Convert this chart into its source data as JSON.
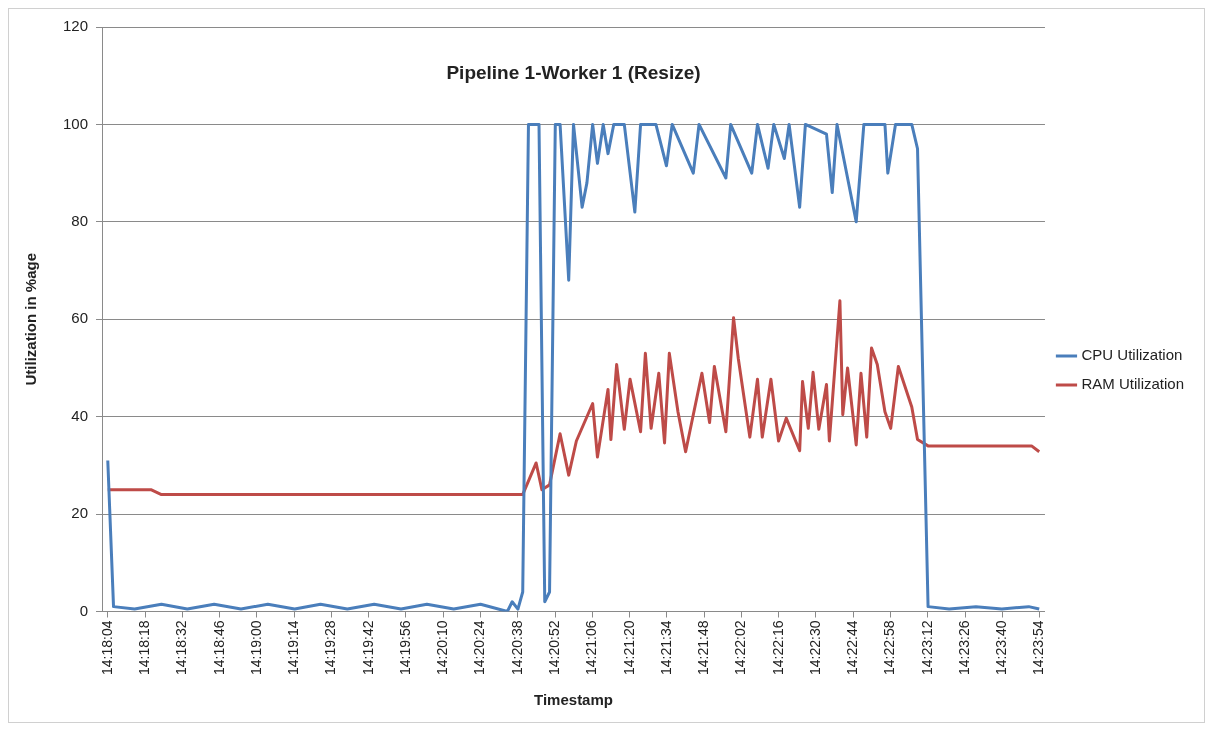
{
  "chart_data": {
    "type": "line",
    "title": "Pipeline 1-Worker 1 (Resize)",
    "xlabel": "Timestamp",
    "ylabel": "Utilization in %age",
    "xlim": [
      14.3005,
      14.3989
    ],
    "ylim": [
      0,
      120
    ],
    "yticks": [
      0,
      20,
      40,
      60,
      80,
      100,
      120
    ],
    "xticks": [
      {
        "value": 14.30111,
        "label": "14:18:04"
      },
      {
        "value": 14.305,
        "label": "14:18:18"
      },
      {
        "value": 14.30889,
        "label": "14:18:32"
      },
      {
        "value": 14.31278,
        "label": "14:18:46"
      },
      {
        "value": 14.31667,
        "label": "14:19:00"
      },
      {
        "value": 14.32056,
        "label": "14:19:14"
      },
      {
        "value": 14.32444,
        "label": "14:19:28"
      },
      {
        "value": 14.32833,
        "label": "14:19:42"
      },
      {
        "value": 14.33222,
        "label": "14:19:56"
      },
      {
        "value": 14.33611,
        "label": "14:20:10"
      },
      {
        "value": 14.34,
        "label": "14:20:24"
      },
      {
        "value": 14.34389,
        "label": "14:20:38"
      },
      {
        "value": 14.34778,
        "label": "14:20:52"
      },
      {
        "value": 14.35167,
        "label": "14:21:06"
      },
      {
        "value": 14.35556,
        "label": "14:21:20"
      },
      {
        "value": 14.35944,
        "label": "14:21:34"
      },
      {
        "value": 14.36333,
        "label": "14:21:48"
      },
      {
        "value": 14.36722,
        "label": "14:22:02"
      },
      {
        "value": 14.37111,
        "label": "14:22:16"
      },
      {
        "value": 14.375,
        "label": "14:22:30"
      },
      {
        "value": 14.37889,
        "label": "14:22:44"
      },
      {
        "value": 14.38278,
        "label": "14:22:58"
      },
      {
        "value": 14.38667,
        "label": "14:23:12"
      },
      {
        "value": 14.39056,
        "label": "14:23:26"
      },
      {
        "value": 14.39444,
        "label": "14:23:40"
      },
      {
        "value": 14.39833,
        "label": "14:23:54"
      }
    ],
    "grid": "y",
    "legend": "right",
    "marker": "none",
    "line_style": "solid",
    "series": [
      {
        "name": "CPU Utilization",
        "color": "#4a7ebb",
        "x": [
          14.3011,
          14.3017,
          14.3039,
          14.3067,
          14.3094,
          14.3122,
          14.315,
          14.3178,
          14.3206,
          14.3233,
          14.3261,
          14.3289,
          14.3317,
          14.3344,
          14.3372,
          14.34,
          14.3428,
          14.3433,
          14.3439,
          14.3444,
          14.345,
          14.3461,
          14.3467,
          14.3472,
          14.3478,
          14.3483,
          14.3492,
          14.3497,
          14.3506,
          14.3511,
          14.3517,
          14.3522,
          14.3528,
          14.3533,
          14.3539,
          14.355,
          14.3561,
          14.3567,
          14.3583,
          14.3594,
          14.36,
          14.3622,
          14.3628,
          14.3656,
          14.3661,
          14.3683,
          14.3689,
          14.37,
          14.3706,
          14.3717,
          14.3722,
          14.3733,
          14.3739,
          14.3761,
          14.3767,
          14.3772,
          14.3792,
          14.38,
          14.3822,
          14.3825,
          14.3833,
          14.385,
          14.3856,
          14.3867,
          14.3889,
          14.3917,
          14.3944,
          14.3972,
          14.3983
        ],
        "values": [
          31,
          1,
          0.5,
          1.5,
          0.5,
          1.5,
          0.5,
          1.5,
          0.5,
          1.5,
          0.5,
          1.5,
          0.5,
          1.5,
          0.5,
          1.5,
          0,
          2,
          0.5,
          4,
          100,
          100,
          2,
          4,
          100,
          100,
          68,
          100,
          83,
          88,
          100,
          92,
          100,
          94,
          100,
          100,
          82,
          100,
          100,
          91.5,
          100,
          90,
          100,
          89,
          100,
          90,
          100,
          91,
          100,
          93,
          100,
          83,
          100,
          98,
          86,
          100,
          80,
          100,
          100,
          90,
          100,
          100,
          95,
          1,
          0.5,
          1,
          0.5,
          1,
          0.5
        ]
      },
      {
        "name": "RAM Utilization",
        "color": "#be4b48",
        "x": [
          14.3011,
          14.3056,
          14.3067,
          14.3444,
          14.3458,
          14.3464,
          14.3472,
          14.3483,
          14.3492,
          14.35,
          14.3517,
          14.3522,
          14.3533,
          14.3536,
          14.3542,
          14.355,
          14.3556,
          14.3567,
          14.3572,
          14.3578,
          14.3586,
          14.3592,
          14.3597,
          14.3606,
          14.3614,
          14.3631,
          14.3639,
          14.3644,
          14.3656,
          14.3664,
          14.3669,
          14.3681,
          14.3689,
          14.3694,
          14.3703,
          14.3711,
          14.3719,
          14.3733,
          14.3736,
          14.3742,
          14.3747,
          14.3753,
          14.3761,
          14.3764,
          14.3775,
          14.3778,
          14.3783,
          14.3792,
          14.3797,
          14.3803,
          14.3808,
          14.3814,
          14.3822,
          14.3828,
          14.3836,
          14.385,
          14.3856,
          14.3867,
          14.3975,
          14.3983
        ],
        "values": [
          25,
          25,
          24,
          24,
          30.5,
          25,
          26,
          36.5,
          28,
          35,
          42.7,
          31.7,
          45.6,
          35.3,
          50.7,
          37.4,
          47.7,
          36.9,
          53,
          37.6,
          48.9,
          34.6,
          53,
          41,
          32.8,
          48.9,
          38.8,
          50.3,
          36.9,
          60.3,
          51.9,
          35.8,
          47.7,
          35.8,
          47.7,
          35,
          39.7,
          33,
          47.2,
          37.6,
          49.1,
          37.4,
          46.6,
          35,
          63.8,
          40.4,
          50,
          34.2,
          48.9,
          35.8,
          54.1,
          50.7,
          41,
          37.6,
          50.3,
          42,
          35.3,
          34,
          34,
          32.8
        ]
      }
    ]
  }
}
